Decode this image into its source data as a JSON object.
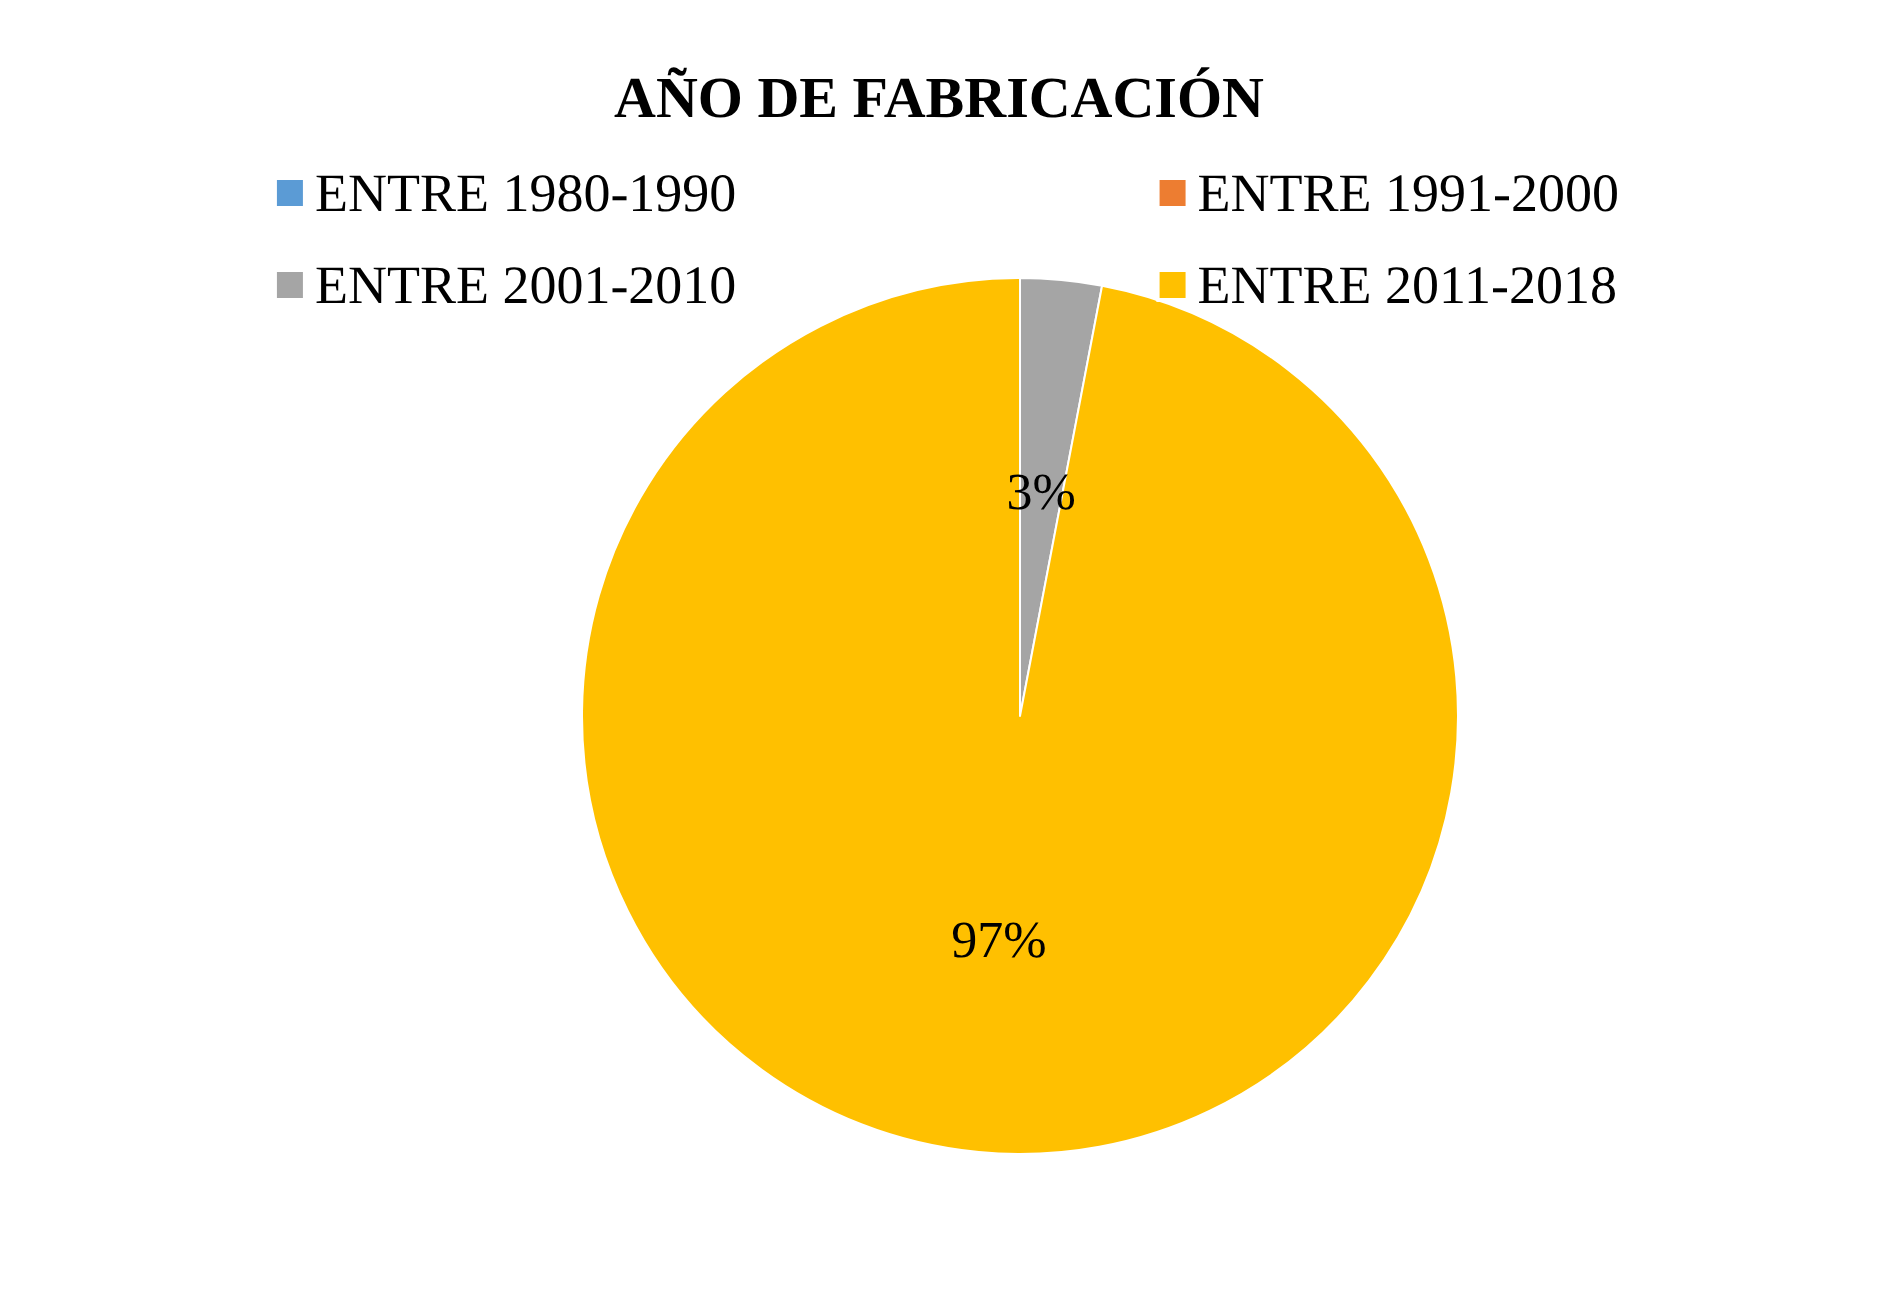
{
  "chart_data": {
    "type": "pie",
    "title": "AÑO DE FABRICACIÓN",
    "categories": [
      "ENTRE 1980-1990",
      "ENTRE 1991-2000",
      "ENTRE 2001-2010",
      "ENTRE 2011-2018"
    ],
    "values": [
      0,
      0,
      3,
      97
    ],
    "colors": [
      "#5b9bd5",
      "#ed7d31",
      "#a5a5a5",
      "#ffc000"
    ],
    "value_labels": [
      null,
      null,
      "3%",
      "97%"
    ],
    "legend": "top"
  }
}
